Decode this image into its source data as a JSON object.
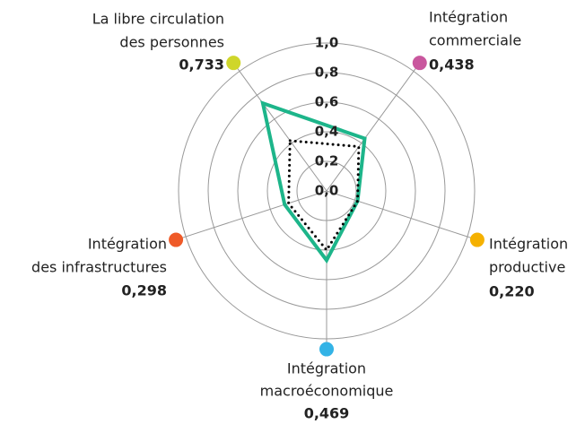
{
  "chart_data": {
    "type": "radar",
    "categories": [
      [
        "La libre circulation",
        "des personnes"
      ],
      [
        "Intégration",
        "commerciale"
      ],
      [
        "Intégration",
        "productive"
      ],
      [
        "Intégration",
        "macroéconomique"
      ],
      [
        "Intégration",
        "des infrastructures"
      ]
    ],
    "category_colors": [
      "#cfd62a",
      "#c9579e",
      "#f5b100",
      "#33b3e6",
      "#ef5a28"
    ],
    "series": [
      {
        "color": "#1db58a",
        "line_style": "solid",
        "values": [
          0.733,
          0.438,
          0.22,
          0.469,
          0.298
        ],
        "value_labels": [
          "0,733",
          "0,438",
          "0,220",
          "0,469",
          "0,298"
        ]
      },
      {
        "color": "#000000",
        "line_style": "dotted",
        "values": [
          0.42,
          0.37,
          0.22,
          0.4,
          0.27
        ]
      }
    ],
    "rlim": [
      0,
      1
    ],
    "rticks": [
      {
        "value": 0,
        "label": "0,0"
      },
      {
        "value": 0.2,
        "label": "0,2"
      },
      {
        "value": 0.4,
        "label": "0,4"
      },
      {
        "value": 0.6,
        "label": "0,6"
      },
      {
        "value": 0.8,
        "label": "0,8"
      },
      {
        "value": 1,
        "label": "1,0"
      }
    ],
    "grid": true
  }
}
